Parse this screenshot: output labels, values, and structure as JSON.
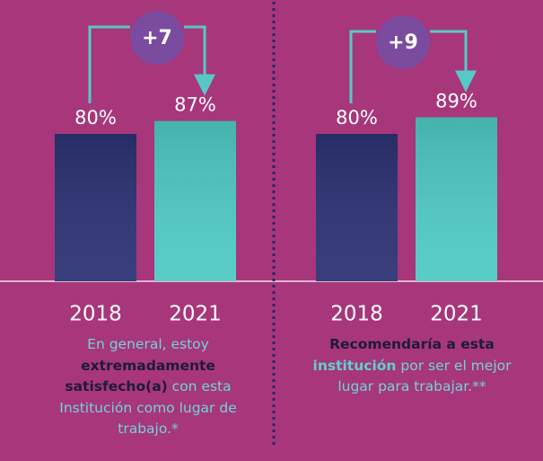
{
  "chart_data": [
    {
      "type": "bar",
      "categories": [
        "2018",
        "2021"
      ],
      "values": [
        80,
        87
      ],
      "value_labels": [
        "80%",
        "87%"
      ],
      "colors": [
        "#2b3273",
        "#4fcac5"
      ],
      "annotation": "+7",
      "caption": [
        {
          "text": "En general, estoy ",
          "bold": false,
          "color": "#6fd3d8"
        },
        {
          "text": "extremadamente satisfecho(a)",
          "bold": true,
          "color": "#1d1b3d"
        },
        {
          "text": " con esta Institución como lugar de trabajo.*",
          "bold": false,
          "color": "#6fd3d8"
        }
      ]
    },
    {
      "type": "bar",
      "categories": [
        "2018",
        "2021"
      ],
      "values": [
        80,
        89
      ],
      "value_labels": [
        "80%",
        "89%"
      ],
      "colors": [
        "#2b3273",
        "#4fcac5"
      ],
      "annotation": "+9",
      "caption": [
        {
          "text": "Recomendaría a esta ",
          "bold": true,
          "color": "#1d1b3d"
        },
        {
          "text": "institución",
          "bold": true,
          "color": "#5fd0cf"
        },
        {
          "text": " por ser el mejor lugar para trabajar.**",
          "bold": false,
          "color": "#6fd3d8"
        }
      ]
    }
  ]
}
